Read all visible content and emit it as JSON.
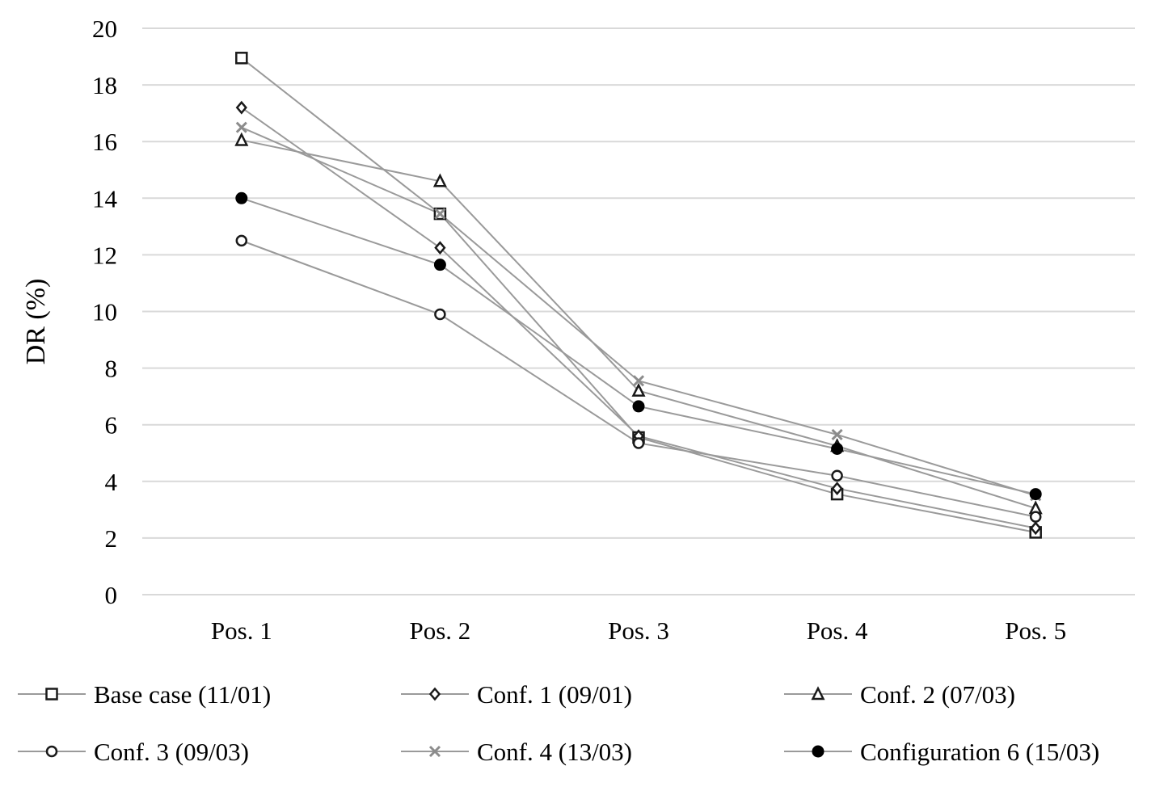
{
  "chart_data": {
    "type": "line",
    "title": "",
    "xlabel": "",
    "ylabel": "DR (%)",
    "ylim": [
      0,
      20
    ],
    "yticks": [
      0,
      2,
      4,
      6,
      8,
      10,
      12,
      14,
      16,
      18,
      20
    ],
    "grid": true,
    "legend_position": "bottom",
    "categories": [
      "Pos. 1",
      "Pos. 2",
      "Pos. 3",
      "Pos. 4",
      "Pos. 5"
    ],
    "series": [
      {
        "name": "Base case (11/01)",
        "marker": "square",
        "marker_color": "#1a1a1a",
        "values": [
          18.95,
          13.45,
          5.55,
          3.55,
          2.2
        ]
      },
      {
        "name": "Conf. 1 (09/01)",
        "marker": "diamond",
        "marker_color": "#1a1a1a",
        "values": [
          17.2,
          12.25,
          5.6,
          3.75,
          2.35
        ]
      },
      {
        "name": "Conf. 2 (07/03)",
        "marker": "triangle",
        "marker_color": "#1a1a1a",
        "values": [
          16.05,
          14.6,
          7.2,
          5.25,
          3.05
        ]
      },
      {
        "name": "Conf. 3 (09/03)",
        "marker": "circle",
        "marker_color": "#1a1a1a",
        "values": [
          12.5,
          9.9,
          5.35,
          4.2,
          2.75
        ]
      },
      {
        "name": "Conf. 4 (13/03)",
        "marker": "cross",
        "marker_color": "#8c8c8c",
        "values": [
          16.5,
          13.45,
          7.55,
          5.65,
          3.5
        ]
      },
      {
        "name": "Configuration 6 (15/03)",
        "marker": "filled-circle",
        "marker_color": "#000000",
        "values": [
          14.0,
          11.65,
          6.65,
          5.15,
          3.55
        ]
      }
    ],
    "colors": {
      "line": "#9a9a9a",
      "grid": "#d9d9d9",
      "text": "#000000"
    }
  }
}
